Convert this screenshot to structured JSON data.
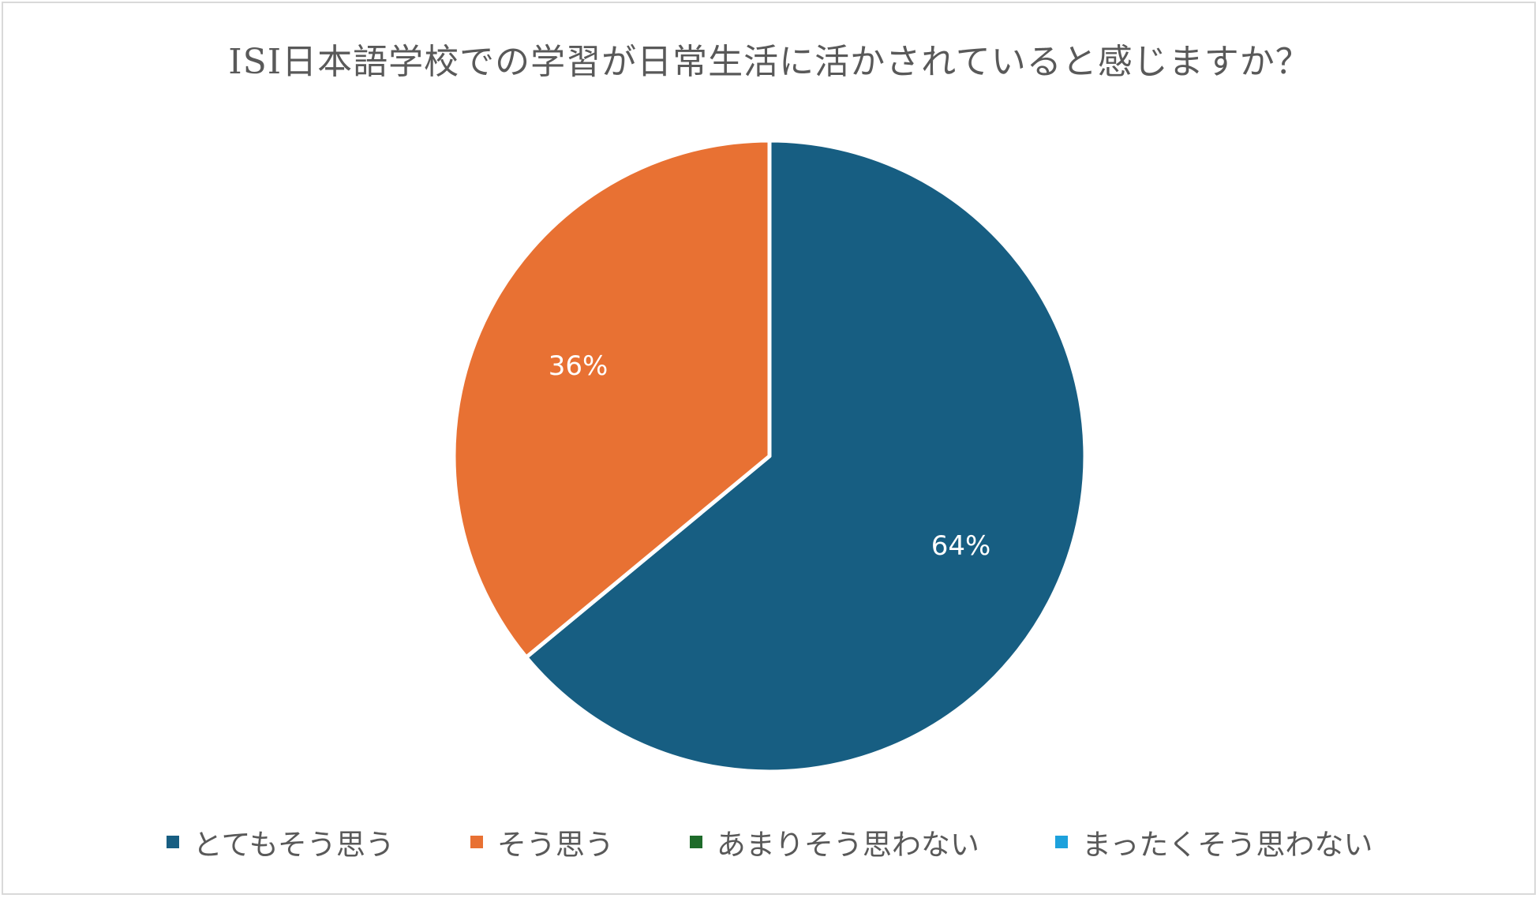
{
  "chart_data": {
    "type": "pie",
    "title": "ISI日本語学校での学習が日常生活に活かされていると感じますか？",
    "categories": [
      "とてもそう思う",
      "そう思う",
      "あまりそう思わない",
      "まったくそう思わない"
    ],
    "values": [
      64,
      36,
      0,
      0
    ],
    "data_labels": [
      "64%",
      "36%",
      "",
      ""
    ],
    "colors": [
      "#175e82",
      "#e87133",
      "#1e6b2a",
      "#1da1dc"
    ],
    "legend_position": "bottom"
  }
}
